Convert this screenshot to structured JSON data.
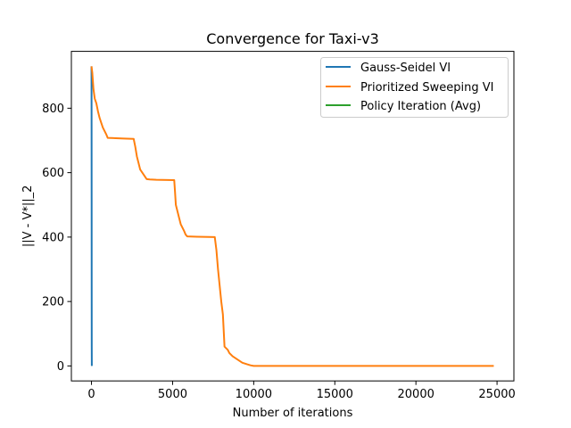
{
  "chart_data": {
    "type": "line",
    "title": "Convergence for Taxi-v3",
    "xlabel": "Number of iterations",
    "ylabel": "||V - V*||_2",
    "xlim": [
      -1240,
      26040
    ],
    "ylim": [
      -46.5,
      976.5
    ],
    "xticks": [
      0,
      5000,
      10000,
      15000,
      20000,
      25000
    ],
    "yticks": [
      0,
      200,
      400,
      600,
      800
    ],
    "grid": false,
    "legend_position": "top-right",
    "series": [
      {
        "name": "Gauss-Seidel VI",
        "color": "#1f77b4",
        "x": [
          0,
          3,
          6,
          9,
          12,
          15,
          20
        ],
        "y": [
          930,
          880,
          750,
          520,
          250,
          60,
          0
        ]
      },
      {
        "name": "Prioritized Sweeping VI",
        "color": "#ff7f0e",
        "x": [
          0,
          50,
          120,
          200,
          300,
          400,
          500,
          600,
          700,
          800,
          900,
          1000,
          1500,
          2000,
          2600,
          2700,
          2800,
          2900,
          3000,
          3200,
          3400,
          3600,
          4000,
          5100,
          5150,
          5200,
          5300,
          5400,
          5500,
          5600,
          5700,
          5800,
          5900,
          6500,
          7600,
          7700,
          7800,
          7900,
          8000,
          8100,
          8200,
          8300,
          8400,
          8500,
          8700,
          9000,
          9300,
          9600,
          9800,
          10000,
          12000,
          15000,
          20000,
          24800
        ],
        "y": [
          930,
          910,
          860,
          830,
          815,
          790,
          770,
          755,
          740,
          730,
          720,
          708,
          707,
          706,
          705,
          680,
          650,
          630,
          610,
          595,
          580,
          579,
          578,
          577,
          540,
          500,
          480,
          460,
          440,
          430,
          420,
          408,
          402,
          401,
          400,
          360,
          300,
          250,
          200,
          160,
          60,
          55,
          50,
          40,
          30,
          20,
          10,
          5,
          2,
          0,
          0,
          0,
          0,
          0
        ]
      },
      {
        "name": "Policy Iteration (Avg)",
        "color": "#2ca02c",
        "x": [
          0,
          1,
          2,
          3
        ],
        "y": [
          0,
          0,
          0,
          0
        ]
      }
    ]
  }
}
